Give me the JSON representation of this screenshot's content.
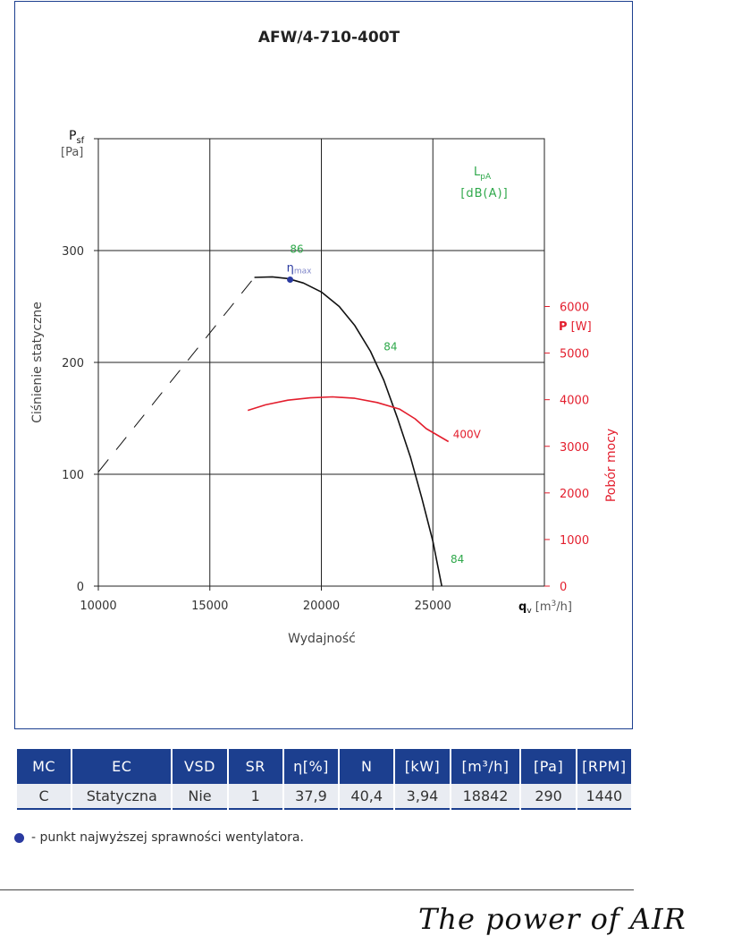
{
  "chart_data": {
    "type": "line",
    "title": "AFW/4-710-400T",
    "ylabel": "Ciśnienie statyczne",
    "ylabel_symbol": "P",
    "ylabel_symbol_sub": "sf",
    "ylabel_unit": "[Pa]",
    "xlabel": "Wydajność",
    "xlabel_symbol": "q",
    "xlabel_symbol_sub": "v",
    "xlabel_unit_pre": "[m",
    "xlabel_unit_sup": "3",
    "xlabel_unit_post": "/h]",
    "y2label": "Pobór mocy",
    "y2label_symbol": "P",
    "y2label_unit": "[W]",
    "lpa_label": "L",
    "lpa_sub": "pA",
    "lpa_unit": "[dB(A)]",
    "xlim": [
      10000,
      30000
    ],
    "ylim": [
      0,
      400
    ],
    "y2lim": [
      0,
      9600
    ],
    "x_ticks": [
      10000,
      15000,
      20000,
      25000
    ],
    "y_ticks": [
      0,
      100,
      200,
      300
    ],
    "y2_ticks": [
      0,
      1000,
      2000,
      3000,
      4000,
      5000,
      6000
    ],
    "grid": true,
    "series": [
      {
        "role": "pressure",
        "color": "#111111",
        "points": [
          [
            17000,
            276
          ],
          [
            17800,
            276.5
          ],
          [
            18500,
            275
          ],
          [
            19200,
            271
          ],
          [
            20000,
            263
          ],
          [
            20800,
            250
          ],
          [
            21500,
            233
          ],
          [
            22200,
            210
          ],
          [
            22800,
            184
          ],
          [
            23400,
            151
          ],
          [
            24000,
            115
          ],
          [
            24500,
            79
          ],
          [
            25000,
            40
          ],
          [
            25400,
            0
          ]
        ]
      },
      {
        "role": "pressure-extension",
        "color": "#111111",
        "dashed": true,
        "points": [
          [
            10000,
            102
          ],
          [
            17000,
            276
          ]
        ]
      },
      {
        "name": "400V",
        "role": "power",
        "color": "#e31e2d",
        "axis": "right",
        "points": [
          [
            16700,
            3770
          ],
          [
            17500,
            3890
          ],
          [
            18500,
            3990
          ],
          [
            19500,
            4040
          ],
          [
            20500,
            4060
          ],
          [
            21500,
            4030
          ],
          [
            22500,
            3940
          ],
          [
            23500,
            3800
          ],
          [
            24200,
            3590
          ],
          [
            24700,
            3380
          ],
          [
            25700,
            3100
          ]
        ]
      }
    ],
    "eta_max": {
      "x": 18600,
      "y": 274,
      "label": "η",
      "label_sub": "max"
    },
    "noise_labels": [
      {
        "x": 18900,
        "y": 298,
        "text": "86"
      },
      {
        "x": 23100,
        "y": 211,
        "text": "84"
      },
      {
        "x": 26100,
        "y": 21,
        "text": "84"
      }
    ]
  },
  "table": {
    "headers": [
      "MC",
      "EC",
      "VSD",
      "SR",
      "η[%]",
      "N",
      "[kW]",
      "[m³/h]",
      "[Pa]",
      "[RPM]"
    ],
    "row": [
      "C",
      "Statyczna",
      "Nie",
      "1",
      "37,9",
      "40,4",
      "3,94",
      "18842",
      "290",
      "1440"
    ]
  },
  "legend_note": "- punkt najwyższej sprawności wentylatora.",
  "slogan": "The power of AIR",
  "colors": {
    "brand": "#1c3f8f",
    "power": "#e31e2d",
    "noise": "#2ea84a",
    "eta": "#2a3aa0"
  }
}
